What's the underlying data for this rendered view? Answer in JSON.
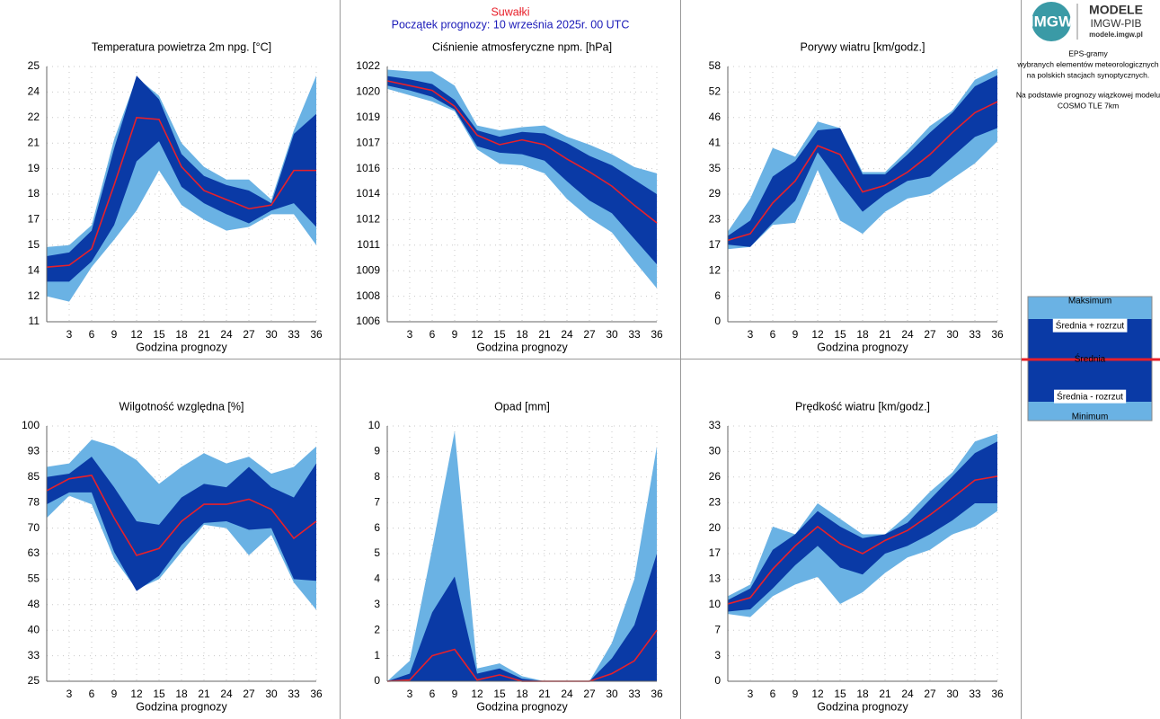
{
  "header": {
    "station": "Suwałki",
    "subtitle": "Początek prognozy: 10 września 2025r. 00 UTC"
  },
  "sidebar": {
    "logo": "IMGW",
    "brand": "MODELE",
    "org": "IMGW-PIB",
    "url": "modele.imgw.pl",
    "description": [
      "EPS-gramy",
      "wybranych elementów meteorologicznych",
      "na polskich stacjach  synoptycznych.",
      "Na podstawie prognozy wiązkowej modelu",
      "COSMO TLE 7km"
    ]
  },
  "legend": [
    {
      "name": "Maksimum",
      "color": "#6ab2e4"
    },
    {
      "name": "Średnia + rozrzut",
      "color": "#0a3aa6"
    },
    {
      "name": "Średnia",
      "color": "#e8202a"
    },
    {
      "name": "Średnia - rozrzut",
      "color": "#0a3aa6"
    },
    {
      "name": "Minimum",
      "color": "#6ab2e4"
    }
  ],
  "chart_data": [
    {
      "type": "band",
      "title": "Temperatura powietrza 2m npg. [°C]",
      "xlabel": "Godzina prognozy",
      "x": [
        0,
        3,
        6,
        9,
        12,
        15,
        18,
        21,
        24,
        27,
        30,
        33,
        36
      ],
      "xlim": [
        0,
        36
      ],
      "xticks": [
        3,
        6,
        9,
        12,
        15,
        18,
        21,
        24,
        27,
        30,
        33,
        36
      ],
      "ylim": [
        11,
        25
      ],
      "yticks": [
        {
          "value": 11,
          "label": "11"
        },
        {
          "value": 12.4,
          "label": "12"
        },
        {
          "value": 13.8,
          "label": "14"
        },
        {
          "value": 15.2,
          "label": "15"
        },
        {
          "value": 16.6,
          "label": "17"
        },
        {
          "value": 18,
          "label": "18"
        },
        {
          "value": 19.4,
          "label": "19"
        },
        {
          "value": 20.8,
          "label": "21"
        },
        {
          "value": 22.2,
          "label": "22"
        },
        {
          "value": 23.6,
          "label": "24"
        },
        {
          "value": 25,
          "label": "25"
        }
      ],
      "series": [
        {
          "values": [
            15.1,
            15.2,
            16.3,
            21.0,
            24.4,
            23.4,
            20.8,
            19.5,
            18.8,
            18.8,
            17.7,
            21.5,
            24.5
          ]
        },
        {
          "values": [
            14.6,
            14.8,
            16.0,
            20.5,
            24.5,
            23.2,
            20.2,
            19.0,
            18.5,
            18.2,
            17.5,
            21.3,
            22.4
          ]
        },
        {
          "values": [
            14.0,
            14.1,
            15.0,
            18.5,
            22.2,
            22.1,
            19.5,
            18.2,
            17.7,
            17.2,
            17.4,
            19.3,
            19.3
          ]
        },
        {
          "values": [
            13.2,
            13.2,
            14.3,
            16.3,
            19.8,
            20.9,
            18.4,
            17.5,
            16.9,
            16.4,
            17.1,
            17.5,
            16.2
          ]
        },
        {
          "values": [
            12.4,
            12.1,
            14.0,
            15.5,
            17.1,
            19.3,
            17.4,
            16.6,
            16.0,
            16.2,
            16.9,
            16.9,
            15.2
          ]
        }
      ]
    },
    {
      "type": "band",
      "title": "Ciśnienie atmosferyczne npm. [hPa]",
      "xlabel": "Godzina prognozy",
      "x": [
        0,
        3,
        6,
        9,
        12,
        15,
        18,
        21,
        24,
        27,
        30,
        33,
        36
      ],
      "xlim": [
        0,
        36
      ],
      "xticks": [
        3,
        6,
        9,
        12,
        15,
        18,
        21,
        24,
        27,
        30,
        33,
        36
      ],
      "ylim": [
        1006,
        1022
      ],
      "yticks": [
        1006,
        {
          "value": 1007.6,
          "label": "1008"
        },
        {
          "value": 1009.2,
          "label": "1009"
        },
        {
          "value": 1010.8,
          "label": "1011"
        },
        {
          "value": 1012.4,
          "label": "1012"
        },
        1014,
        {
          "value": 1015.6,
          "label": "1016"
        },
        {
          "value": 1017.2,
          "label": "1017"
        },
        {
          "value": 1018.8,
          "label": "1019"
        },
        {
          "value": 1020.4,
          "label": "1020"
        },
        1022
      ],
      "series": [
        {
          "values": [
            1021.8,
            1021.7,
            1021.7,
            1020.8,
            1018.3,
            1018.0,
            1018.2,
            1018.3,
            1017.6,
            1017.1,
            1016.5,
            1015.7,
            1015.3
          ]
        },
        {
          "values": [
            1021.4,
            1021.2,
            1020.9,
            1019.9,
            1018.0,
            1017.6,
            1017.9,
            1017.8,
            1017.2,
            1016.4,
            1015.8,
            1014.9,
            1014.0
          ]
        },
        {
          "values": [
            1021.1,
            1020.8,
            1020.5,
            1019.5,
            1017.7,
            1017.1,
            1017.4,
            1017.1,
            1016.2,
            1015.4,
            1014.5,
            1013.3,
            1012.2
          ]
        },
        {
          "values": [
            1020.8,
            1020.5,
            1020.1,
            1019.3,
            1017.0,
            1016.6,
            1016.5,
            1016.1,
            1014.8,
            1013.6,
            1012.8,
            1011.2,
            1009.6
          ]
        },
        {
          "values": [
            1020.6,
            1020.2,
            1019.8,
            1019.2,
            1016.8,
            1015.9,
            1015.8,
            1015.3,
            1013.7,
            1012.5,
            1011.6,
            1009.8,
            1008.1
          ]
        }
      ]
    },
    {
      "type": "band",
      "title": "Porywy wiatru [km/godz.]",
      "xlabel": "Godzina prognozy",
      "x": [
        0,
        3,
        6,
        9,
        12,
        15,
        18,
        21,
        24,
        27,
        30,
        33,
        36
      ],
      "xlim": [
        0,
        36
      ],
      "xticks": [
        3,
        6,
        9,
        12,
        15,
        18,
        21,
        24,
        27,
        30,
        33,
        36
      ],
      "ylim": [
        0,
        58
      ],
      "yticks": [
        0,
        {
          "value": 5.8,
          "label": "6"
        },
        {
          "value": 11.6,
          "label": "12"
        },
        {
          "value": 17.4,
          "label": "17"
        },
        {
          "value": 23.2,
          "label": "23"
        },
        29,
        {
          "value": 34.8,
          "label": "35"
        },
        {
          "value": 40.6,
          "label": "41"
        },
        {
          "value": 46.4,
          "label": "46"
        },
        {
          "value": 52.2,
          "label": "52"
        },
        58
      ],
      "series": [
        {
          "values": [
            20.5,
            28,
            39.5,
            37.5,
            45.5,
            44,
            34,
            34,
            39,
            44.5,
            48,
            55,
            57.5
          ]
        },
        {
          "values": [
            19.5,
            23,
            33,
            36.5,
            43.5,
            44,
            33.5,
            33.5,
            38,
            43,
            47.5,
            53.5,
            56
          ]
        },
        {
          "values": [
            18.5,
            20,
            27,
            32,
            40,
            38,
            29.5,
            31,
            34,
            38,
            43,
            47.5,
            50
          ]
        },
        {
          "values": [
            17.5,
            17,
            22.5,
            27.5,
            38.5,
            31.5,
            25,
            29,
            32,
            33,
            37.5,
            42,
            44
          ]
        },
        {
          "values": [
            16.5,
            17,
            22,
            22.5,
            34.5,
            23,
            20,
            25,
            28,
            29,
            32.5,
            36,
            41
          ]
        }
      ]
    },
    {
      "type": "band",
      "title": "Wilgotność względna [%]",
      "xlabel": "Godzina prognozy",
      "x": [
        0,
        3,
        6,
        9,
        12,
        15,
        18,
        21,
        24,
        27,
        30,
        33,
        36
      ],
      "xlim": [
        0,
        36
      ],
      "xticks": [
        3,
        6,
        9,
        12,
        15,
        18,
        21,
        24,
        27,
        30,
        33,
        36
      ],
      "ylim": [
        25,
        100
      ],
      "yticks": [
        25,
        {
          "value": 32.5,
          "label": "33"
        },
        40,
        {
          "value": 47.5,
          "label": "48"
        },
        55,
        {
          "value": 62.5,
          "label": "63"
        },
        70,
        {
          "value": 77.5,
          "label": "78"
        },
        85,
        {
          "value": 92.5,
          "label": "93"
        },
        100
      ],
      "series": [
        {
          "values": [
            88,
            89,
            96,
            94,
            90,
            83,
            88,
            92,
            89,
            91,
            86,
            88,
            94
          ]
        },
        {
          "values": [
            85,
            86,
            91,
            82,
            72,
            71,
            79,
            83,
            82,
            88,
            82,
            79,
            89
          ]
        },
        {
          "values": [
            81,
            84.5,
            85.5,
            73,
            62,
            64,
            72,
            77,
            77,
            78.5,
            75.5,
            67,
            72
          ]
        },
        {
          "values": [
            77,
            80.5,
            80.5,
            63,
            51.5,
            56,
            65,
            71.5,
            72,
            69.5,
            70,
            55,
            54.5
          ]
        },
        {
          "values": [
            73,
            79.5,
            77,
            61,
            52,
            55,
            63,
            71,
            70,
            62,
            68,
            54,
            46
          ]
        }
      ]
    },
    {
      "type": "band",
      "title": "Opad [mm]",
      "xlabel": "Godzina prognozy",
      "x": [
        0,
        3,
        6,
        9,
        12,
        15,
        18,
        21,
        24,
        27,
        30,
        33,
        36
      ],
      "xlim": [
        0,
        36
      ],
      "xticks": [
        3,
        6,
        9,
        12,
        15,
        18,
        21,
        24,
        27,
        30,
        33,
        36
      ],
      "ylim": [
        0,
        10
      ],
      "yticks": [
        0,
        1,
        2,
        3,
        4,
        5,
        6,
        7,
        8,
        9,
        10
      ],
      "series": [
        {
          "values": [
            0,
            0.8,
            5.2,
            9.8,
            0.5,
            0.7,
            0.2,
            0,
            0,
            0,
            1.5,
            4.0,
            9.2
          ]
        },
        {
          "values": [
            0,
            0.3,
            2.7,
            4.1,
            0.3,
            0.5,
            0.1,
            0,
            0,
            0,
            0.9,
            2.2,
            5.0
          ]
        },
        {
          "values": [
            0,
            0.05,
            1.0,
            1.25,
            0.05,
            0.25,
            0,
            0,
            0,
            0,
            0.3,
            0.8,
            2.0
          ]
        },
        {
          "values": [
            0,
            0,
            0,
            0,
            0,
            0,
            0,
            0,
            0,
            0,
            0,
            0,
            0
          ]
        },
        {
          "values": [
            0,
            0,
            0,
            0,
            0,
            0,
            0,
            0,
            0,
            0,
            0,
            0,
            0
          ]
        }
      ]
    },
    {
      "type": "band",
      "title": "Prędkość wiatru [km/godz.]",
      "xlabel": "Godzina prognozy",
      "x": [
        0,
        3,
        6,
        9,
        12,
        15,
        18,
        21,
        24,
        27,
        30,
        33,
        36
      ],
      "xlim": [
        0,
        36
      ],
      "xticks": [
        3,
        6,
        9,
        12,
        15,
        18,
        21,
        24,
        27,
        30,
        33,
        36
      ],
      "ylim": [
        0,
        33
      ],
      "yticks": [
        0,
        {
          "value": 3.3,
          "label": "3"
        },
        {
          "value": 6.6,
          "label": "7"
        },
        {
          "value": 9.9,
          "label": "10"
        },
        {
          "value": 13.2,
          "label": "13"
        },
        {
          "value": 16.5,
          "label": "17"
        },
        {
          "value": 19.8,
          "label": "20"
        },
        {
          "value": 23.1,
          "label": "23"
        },
        {
          "value": 26.4,
          "label": "26"
        },
        {
          "value": 29.7,
          "label": "30"
        },
        33
      ],
      "series": [
        {
          "values": [
            11,
            12.5,
            20,
            19,
            23,
            21,
            19,
            19,
            21.5,
            24.5,
            27,
            31,
            32
          ]
        },
        {
          "values": [
            10.5,
            12,
            17,
            19,
            22,
            20,
            18.5,
            19,
            20.5,
            23.5,
            26.5,
            29.5,
            31
          ]
        },
        {
          "values": [
            10,
            10.8,
            14.5,
            17.5,
            20,
            17.8,
            16.5,
            18.2,
            19.5,
            21.5,
            23.7,
            26,
            26.5
          ]
        },
        {
          "values": [
            9,
            9.3,
            12,
            15,
            17.5,
            14.7,
            13.8,
            16.5,
            17.5,
            19,
            20.8,
            23,
            23
          ]
        },
        {
          "values": [
            8.7,
            8.3,
            11,
            12.5,
            13.5,
            10,
            11.5,
            14,
            16,
            17,
            19,
            20,
            22
          ]
        }
      ]
    }
  ]
}
